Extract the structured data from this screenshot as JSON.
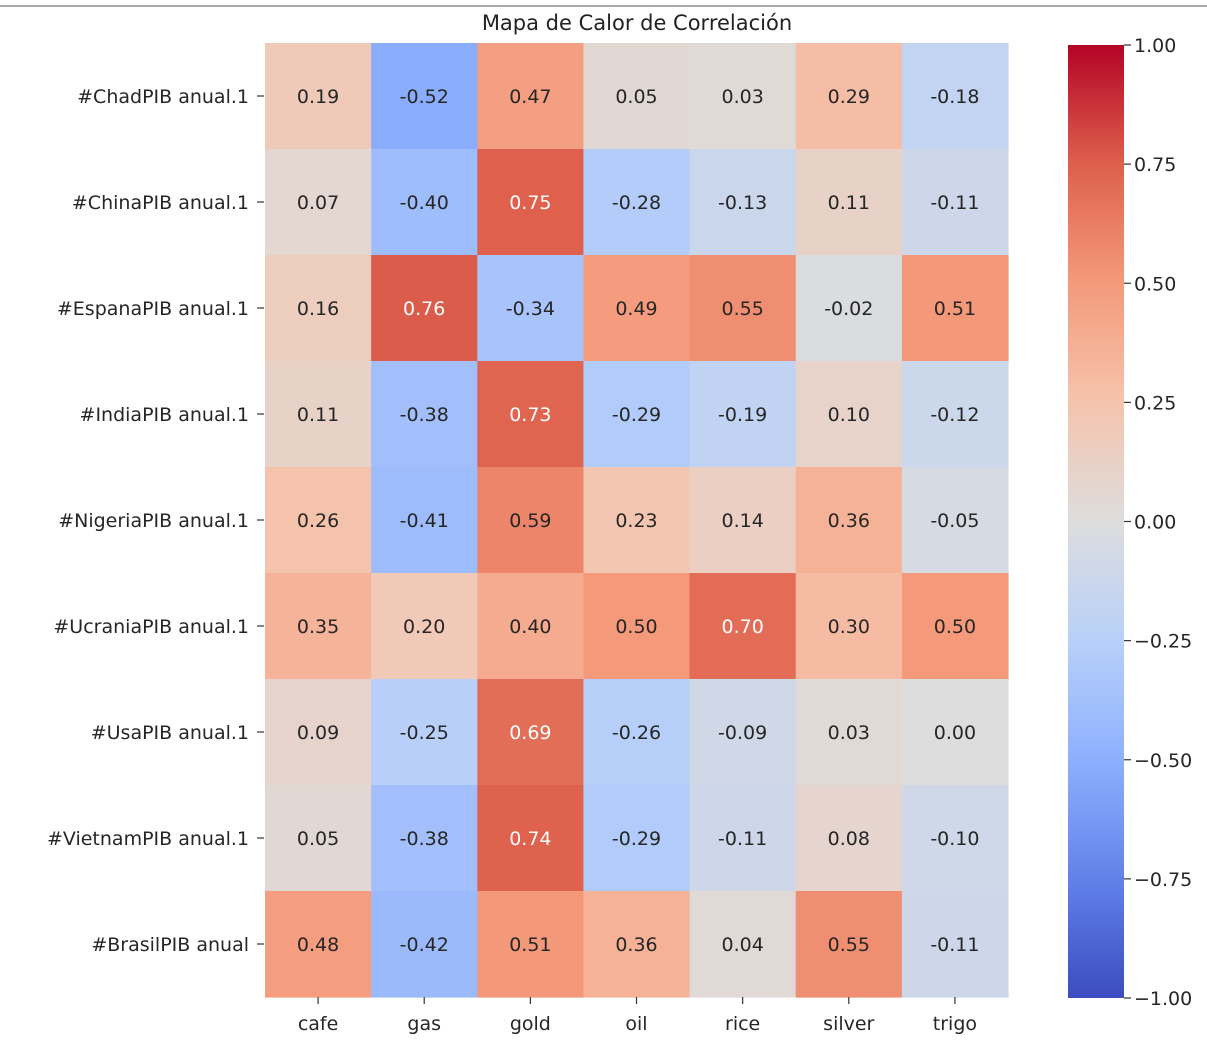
{
  "chart_data": {
    "type": "heatmap",
    "title": "Mapa de Calor de Correlación",
    "xlabel": "",
    "ylabel": "",
    "columns": [
      "cafe",
      "gas",
      "gold",
      "oil",
      "rice",
      "silver",
      "trigo"
    ],
    "rows": [
      "#ChadPIB anual.1",
      "#ChinaPIB anual.1",
      "#EspanaPIB anual.1",
      "#IndiaPIB anual.1",
      "#NigeriaPIB anual.1",
      "#UcraniaPIB anual.1",
      "#UsaPIB anual.1",
      "#VietnamPIB anual.1",
      "#BrasilPIB anual"
    ],
    "values": [
      [
        0.19,
        -0.52,
        0.47,
        0.05,
        0.03,
        0.29,
        -0.18
      ],
      [
        0.07,
        -0.4,
        0.75,
        -0.28,
        -0.13,
        0.11,
        -0.11
      ],
      [
        0.16,
        0.76,
        -0.34,
        0.49,
        0.55,
        -0.02,
        0.51
      ],
      [
        0.11,
        -0.38,
        0.73,
        -0.29,
        -0.19,
        0.1,
        -0.12
      ],
      [
        0.26,
        -0.41,
        0.59,
        0.23,
        0.14,
        0.36,
        -0.05
      ],
      [
        0.35,
        0.2,
        0.4,
        0.5,
        0.7,
        0.3,
        0.5
      ],
      [
        0.09,
        -0.25,
        0.69,
        -0.26,
        -0.09,
        0.03,
        0.0
      ],
      [
        0.05,
        -0.38,
        0.74,
        -0.29,
        -0.11,
        0.08,
        -0.1
      ],
      [
        0.48,
        -0.42,
        0.51,
        0.36,
        0.04,
        0.55,
        -0.11
      ]
    ],
    "annotation_format": "0.00",
    "colormap": "coolwarm",
    "vmin": -1.0,
    "vmax": 1.0,
    "colorbar_ticks": [
      1.0,
      0.75,
      0.5,
      0.25,
      0.0,
      -0.25,
      -0.5,
      -0.75,
      -1.0
    ],
    "colorbar_tick_labels": [
      "1.00",
      "0.75",
      "0.50",
      "0.25",
      "0.00",
      "−0.25",
      "−0.50",
      "−0.75",
      "−1.00"
    ],
    "grid": false,
    "legend": "colorbar-right"
  }
}
